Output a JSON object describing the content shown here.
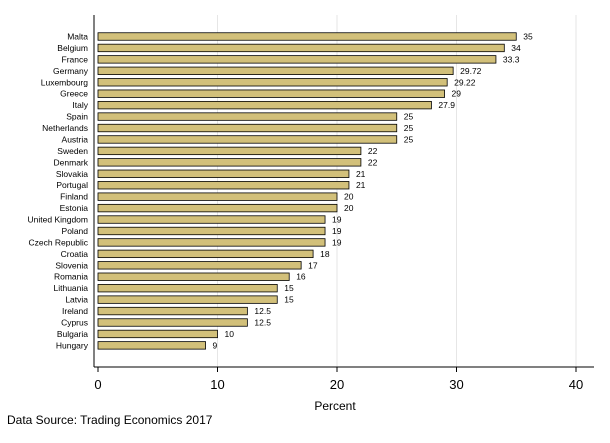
{
  "chart_data": {
    "type": "bar",
    "orientation": "horizontal",
    "categories": [
      "Malta",
      "Belgium",
      "France",
      "Germany",
      "Luxembourg",
      "Greece",
      "Italy",
      "Spain",
      "Netherlands",
      "Austria",
      "Sweden",
      "Denmark",
      "Slovakia",
      "Portugal",
      "Finland",
      "Estonia",
      "United Kingdom",
      "Poland",
      "Czech Republic",
      "Croatia",
      "Slovenia",
      "Romania",
      "Lithuania",
      "Latvia",
      "Ireland",
      "Cyprus",
      "Bulgaria",
      "Hungary"
    ],
    "values": [
      35,
      34,
      33.3,
      29.72,
      29.22,
      29,
      27.9,
      25,
      25,
      25,
      22,
      22,
      21,
      21,
      20,
      20,
      19,
      19,
      19,
      18,
      17,
      16,
      15,
      15,
      12.5,
      12.5,
      10,
      9
    ],
    "value_labels": [
      "35",
      "34",
      "33.3",
      "29.72",
      "29.22",
      "29",
      "27.9",
      "25",
      "25",
      "25",
      "22",
      "22",
      "21",
      "21",
      "20",
      "20",
      "19",
      "19",
      "19",
      "18",
      "17",
      "16",
      "15",
      "15",
      "12.5",
      "12.5",
      "10",
      "9"
    ],
    "xlabel": "Percent",
    "ylabel": "",
    "xlim": [
      0,
      40
    ],
    "xticks": [
      0,
      10,
      20,
      30,
      40
    ],
    "grid": true,
    "legend": "none",
    "bar_color": "#d2c07a",
    "bar_edge_color": "#000000"
  },
  "source_note": "Data Source: Trading Economics 2017"
}
